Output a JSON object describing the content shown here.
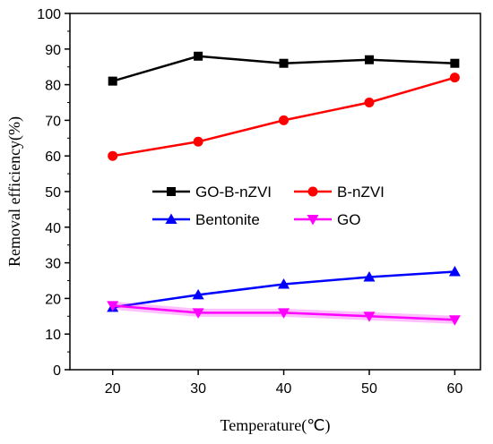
{
  "chart_data": {
    "type": "line",
    "title": "",
    "xlabel": "Temperature(℃)",
    "ylabel": "Removal efficiency(%)",
    "x": [
      20,
      30,
      40,
      50,
      60
    ],
    "xlim": [
      15,
      63
    ],
    "ylim": [
      0,
      100
    ],
    "xticks": [
      "20",
      "30",
      "40",
      "50",
      "60"
    ],
    "yticks": [
      "0",
      "10",
      "20",
      "30",
      "40",
      "50",
      "60",
      "70",
      "80",
      "90",
      "100"
    ],
    "grid": false,
    "legend_position": "center",
    "series": [
      {
        "name": "GO-B-nZVI",
        "values": [
          81,
          88,
          86,
          87,
          86
        ],
        "color": "#000000",
        "marker": "square"
      },
      {
        "name": "B-nZVI",
        "values": [
          60,
          64,
          70,
          75,
          82
        ],
        "color": "#ff0000",
        "marker": "circle"
      },
      {
        "name": "Bentonite",
        "values": [
          17.5,
          21,
          24,
          26,
          27.5
        ],
        "color": "#0000ff",
        "marker": "triangle-up"
      },
      {
        "name": "GO",
        "values": [
          18,
          16,
          16,
          15,
          14
        ],
        "color": "#ff00ff",
        "marker": "triangle-down"
      }
    ]
  }
}
